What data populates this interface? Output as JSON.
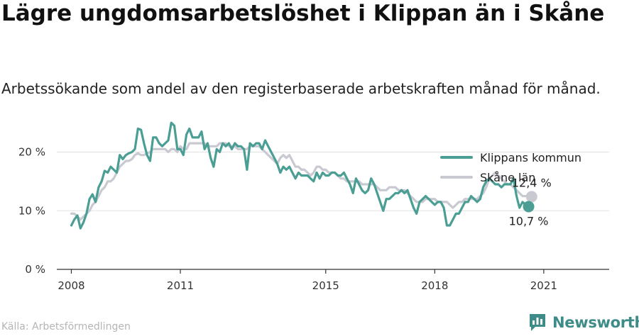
{
  "title": "Lägre ungdomsarbetslöshet i Klippan än i Skåne",
  "subtitle": "Arbetssökande som andel av den registerbaserade arbetskraften månad för månad.",
  "source": "Källa: Arbetsförmedlingen",
  "brand": {
    "name": "Newsworthy",
    "icon": "newsworthy-logo-icon"
  },
  "colors": {
    "klippan": "#4a9e94",
    "skane": "#c9c9d2",
    "grid": "#e2e2e2",
    "axis": "#333333"
  },
  "chart_data": {
    "type": "line",
    "title": "Lägre ungdomsarbetslöshet i Klippan än i Skåne",
    "xlabel": "",
    "ylabel": "",
    "xlim": [
      2007.6,
      2022.8
    ],
    "ylim": [
      0,
      22
    ],
    "x_ticks": [
      {
        "value": 2008,
        "label": "2008"
      },
      {
        "value": 2011,
        "label": "2011"
      },
      {
        "value": 2015,
        "label": "2015"
      },
      {
        "value": 2018,
        "label": "2018"
      },
      {
        "value": 2021,
        "label": "2021"
      }
    ],
    "y_ticks": [
      {
        "value": 0,
        "label": "0 %"
      },
      {
        "value": 10,
        "label": "10 %"
      },
      {
        "value": 20,
        "label": "20 %"
      }
    ],
    "grid": true,
    "legend_position": "top-right",
    "x_start": 2008.0,
    "x_step_months": 1,
    "series": [
      {
        "name": "Klippans kommun",
        "color": "#4a9e94",
        "end_label": "10,7 %",
        "values": [
          7.5,
          8.5,
          9.2,
          7.0,
          8.0,
          9.5,
          12.0,
          12.8,
          11.5,
          14.0,
          15.0,
          16.8,
          16.5,
          17.5,
          17.0,
          16.5,
          19.5,
          18.8,
          19.5,
          19.8,
          20.0,
          20.5,
          24.0,
          23.8,
          21.5,
          19.5,
          18.5,
          22.5,
          22.5,
          21.5,
          21.0,
          21.5,
          22.0,
          25.0,
          24.5,
          20.5,
          20.5,
          19.5,
          23.0,
          24.0,
          22.5,
          22.5,
          22.5,
          23.5,
          20.5,
          21.5,
          19.0,
          17.5,
          20.5,
          20.0,
          21.5,
          21.0,
          21.5,
          20.5,
          21.5,
          21.0,
          21.0,
          20.5,
          17.0,
          21.5,
          21.0,
          21.5,
          21.5,
          20.5,
          22.0,
          21.0,
          20.0,
          19.0,
          18.0,
          16.5,
          17.5,
          17.0,
          17.5,
          16.5,
          15.5,
          16.5,
          16.0,
          16.0,
          16.0,
          15.5,
          15.0,
          16.5,
          15.5,
          16.5,
          16.0,
          16.0,
          16.5,
          16.5,
          16.0,
          16.0,
          16.5,
          15.5,
          14.5,
          13.0,
          15.5,
          14.5,
          13.5,
          13.0,
          13.5,
          15.5,
          14.5,
          13.0,
          11.5,
          10.0,
          12.0,
          12.0,
          12.5,
          13.0,
          13.0,
          13.5,
          13.0,
          13.5,
          12.0,
          10.5,
          9.5,
          11.5,
          12.0,
          12.5,
          12.0,
          11.5,
          11.0,
          11.5,
          11.5,
          10.5,
          7.5,
          7.5,
          8.5,
          9.5,
          9.5,
          10.5,
          11.5,
          11.5,
          12.5,
          12.0,
          11.5,
          12.0,
          14.0,
          15.0,
          15.5,
          15.0,
          14.5,
          14.5,
          14.0,
          14.5,
          14.5,
          14.5,
          15.5,
          12.5,
          10.5,
          11.5,
          11.0,
          10.7
        ]
      },
      {
        "name": "Skåne län",
        "color": "#c9c9d2",
        "end_label": "12,4 %",
        "values": [
          9.5,
          9.5,
          9.0,
          8.5,
          9.0,
          9.5,
          10.0,
          11.0,
          11.5,
          12.5,
          13.5,
          14.0,
          15.0,
          15.0,
          15.5,
          16.5,
          17.5,
          18.0,
          18.5,
          18.5,
          18.8,
          19.5,
          19.8,
          19.5,
          19.5,
          19.8,
          20.0,
          20.5,
          20.5,
          20.5,
          20.5,
          20.5,
          20.0,
          20.5,
          20.5,
          20.0,
          21.0,
          20.5,
          20.5,
          21.5,
          21.5,
          21.5,
          21.5,
          21.5,
          21.5,
          21.0,
          21.0,
          21.0,
          21.0,
          21.5,
          21.5,
          21.5,
          21.0,
          21.0,
          21.0,
          20.5,
          20.5,
          20.5,
          20.5,
          21.0,
          21.0,
          21.0,
          21.0,
          20.5,
          20.0,
          19.5,
          19.0,
          18.5,
          18.0,
          19.0,
          19.5,
          19.0,
          19.5,
          18.5,
          17.5,
          17.5,
          17.0,
          17.0,
          16.5,
          16.0,
          16.5,
          17.5,
          17.5,
          17.0,
          17.0,
          16.5,
          16.5,
          16.5,
          16.0,
          15.5,
          15.5,
          15.0,
          15.0,
          15.0,
          15.0,
          15.0,
          14.5,
          14.5,
          14.5,
          14.5,
          14.5,
          14.0,
          13.5,
          13.5,
          13.5,
          14.0,
          14.0,
          14.0,
          13.5,
          13.5,
          13.5,
          13.0,
          12.5,
          12.0,
          11.5,
          11.5,
          11.5,
          12.0,
          12.0,
          12.0,
          12.0,
          11.5,
          11.5,
          11.5,
          11.5,
          11.0,
          10.5,
          11.0,
          11.5,
          11.5,
          12.0,
          12.0,
          12.0,
          12.0,
          12.0,
          12.5,
          13.0,
          14.0,
          15.5,
          16.0,
          16.5,
          16.0,
          15.5,
          15.0,
          14.5,
          14.5,
          14.0,
          13.5,
          13.0,
          12.5,
          12.5,
          12.5,
          12.4
        ]
      }
    ]
  }
}
